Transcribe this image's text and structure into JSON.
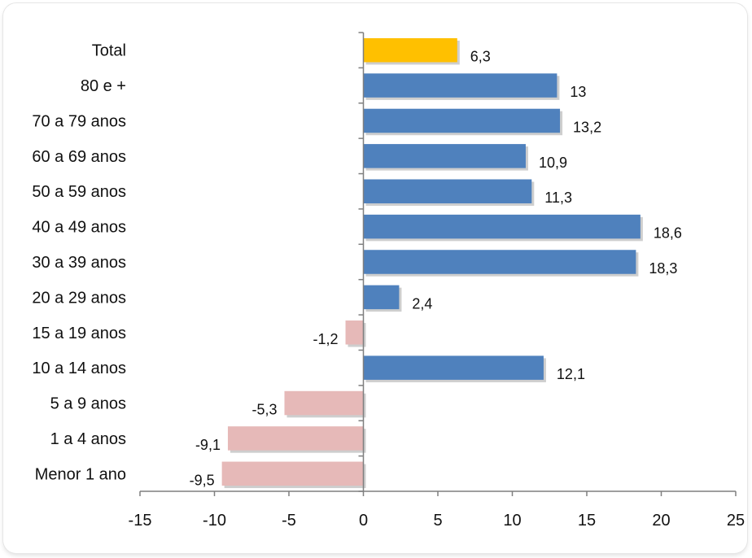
{
  "chart_data": {
    "type": "bar",
    "orientation": "horizontal",
    "categories": [
      "Total",
      "80 e +",
      "70 a 79 anos",
      "60 a 69 anos",
      "50 a 59 anos",
      "40 a 49 anos",
      "30 a 39 anos",
      "20 a 29 anos",
      "15 a 19 anos",
      "10 a 14 anos",
      "5 a 9 anos",
      "1 a 4 anos",
      "Menor 1 ano"
    ],
    "values": [
      6.3,
      13,
      13.2,
      10.9,
      11.3,
      18.6,
      18.3,
      2.4,
      -1.2,
      12.1,
      -5.3,
      -9.1,
      -9.5
    ],
    "value_labels": [
      "6,3",
      "13",
      "13,2",
      "10,9",
      "11,3",
      "18,6",
      "18,3",
      "2,4",
      "-1,2",
      "12,1",
      "-5,3",
      "-9,1",
      "-9,5"
    ],
    "xlim": [
      -15,
      25
    ],
    "xticks": [
      -15,
      -10,
      -5,
      0,
      5,
      10,
      15,
      20,
      25
    ],
    "title": "",
    "xlabel": "",
    "ylabel": "",
    "grid": false,
    "legend": "none",
    "colors": {
      "total": "#FFC000",
      "positive": "#4F81BD",
      "negative": "#E6B9B8",
      "axis": "#7f7f7f",
      "shadow": "#a6a6a6"
    }
  }
}
